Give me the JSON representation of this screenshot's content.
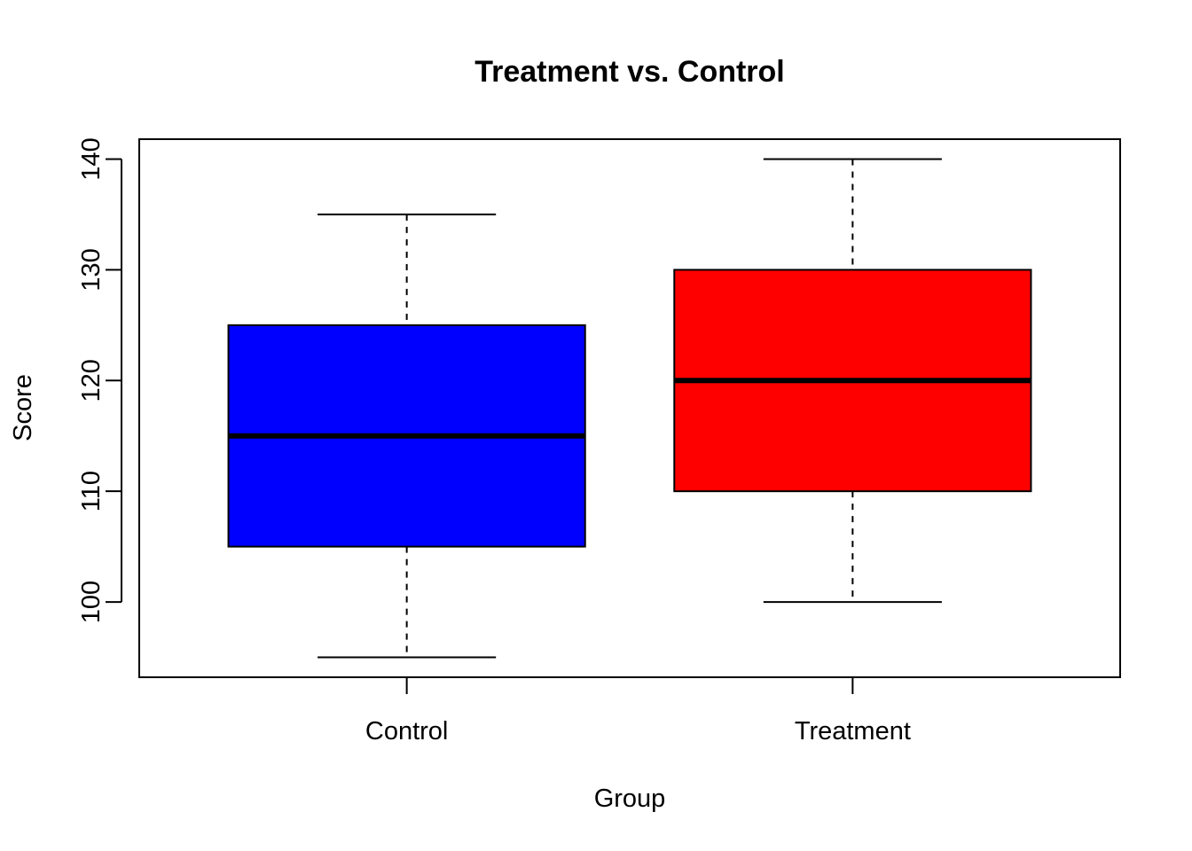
{
  "chart_data": {
    "type": "boxplot",
    "title": "Treatment vs. Control",
    "xlabel": "Group",
    "ylabel": "Score",
    "ylim": [
      93.2,
      141.8
    ],
    "yticks": [
      100,
      110,
      120,
      130,
      140
    ],
    "categories": [
      "Control",
      "Treatment"
    ],
    "boxes": [
      {
        "category": "Control",
        "min": 95,
        "q1": 105,
        "median": 115,
        "q3": 125,
        "max": 135,
        "color": "#0000ff"
      },
      {
        "category": "Treatment",
        "min": 100,
        "q1": 110,
        "median": 120,
        "q3": 130,
        "max": 140,
        "color": "#ff0000"
      }
    ],
    "grid": false,
    "legend": "none"
  }
}
